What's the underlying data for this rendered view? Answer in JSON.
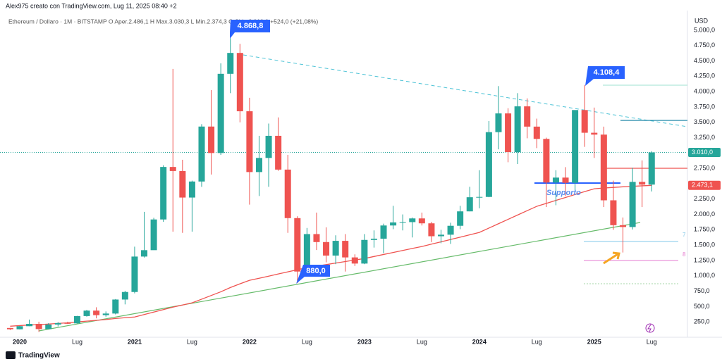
{
  "header": {
    "credit": "Alex975 creato con TradingView.com, Lug 11, 2025 08:40 +2",
    "legend": "Ethereum / Dollaro · 1M · BITSTAMP  O Aper.2.486,1  H Max.3.030,3  L Min.2.374,3  C Chiu.3.010,0  +524,0 (+21,08%)"
  },
  "footer": "TradingView",
  "chart_data": {
    "type": "candlestick",
    "y_axis_label": "USD",
    "categories": [
      null,
      "2020",
      null,
      null,
      null,
      null,
      null,
      "Lug",
      null,
      null,
      null,
      null,
      null,
      "2021",
      null,
      null,
      null,
      null,
      null,
      "Lug",
      null,
      null,
      null,
      null,
      null,
      "2022",
      null,
      null,
      null,
      null,
      null,
      "Lug",
      null,
      null,
      null,
      null,
      null,
      "2023",
      null,
      null,
      null,
      null,
      null,
      "Lug",
      null,
      null,
      null,
      null,
      null,
      "2024",
      null,
      null,
      null,
      null,
      null,
      "Lug",
      null,
      null,
      null,
      null,
      null,
      "2025",
      null,
      null,
      null,
      null,
      null,
      "Lug"
    ],
    "open": [
      151,
      130,
      180,
      218,
      133,
      207,
      231,
      226,
      345,
      434,
      360,
      386,
      614,
      737,
      1314,
      1418,
      1918,
      2773,
      2707,
      2275,
      2536,
      3431,
      3000,
      4290,
      4630,
      3680,
      2690,
      2920,
      3280,
      2730,
      1940,
      1070,
      1680,
      1550,
      1330,
      1570,
      1300,
      1200,
      1585,
      1605,
      1820,
      1870,
      1875,
      1935,
      1855,
      1645,
      1670,
      1815,
      2050,
      2280,
      2285,
      3340,
      3645,
      3015,
      3760,
      3430,
      3230,
      2520,
      2600,
      2515,
      3700,
      3330,
      3300,
      2230,
      1825,
      1795,
      2530,
      2486.1
    ],
    "high": [
      152,
      184,
      288,
      253,
      228,
      246,
      253,
      348,
      446,
      488,
      420,
      622,
      756,
      1475,
      2042,
      1945,
      2800,
      4370,
      2890,
      2550,
      3470,
      4025,
      4460,
      4868.8,
      4778,
      3900,
      3280,
      3480,
      3580,
      2970,
      1970,
      1780,
      2030,
      1790,
      1660,
      1680,
      1350,
      1680,
      1740,
      1850,
      2140,
      2000,
      1950,
      2030,
      1880,
      1750,
      1865,
      2140,
      2450,
      2720,
      3520,
      4090,
      3730,
      3975,
      3890,
      3560,
      3250,
      2720,
      2770,
      3690,
      4108.4,
      3740,
      3430,
      2550,
      1950,
      2760,
      2880,
      3030.3
    ],
    "low": [
      117,
      127,
      180,
      86,
      131,
      176,
      215,
      224,
      335,
      308,
      335,
      372,
      535,
      715,
      1298,
      1435,
      1880,
      1720,
      1700,
      1720,
      2450,
      2650,
      2970,
      3975,
      3500,
      2160,
      2300,
      2450,
      2710,
      1700,
      880,
      1000,
      1420,
      1220,
      1190,
      1070,
      1160,
      1190,
      1460,
      1370,
      1760,
      1740,
      1625,
      1820,
      1550,
      1530,
      1520,
      1760,
      2050,
      2100,
      2280,
      3060,
      2850,
      2820,
      3240,
      3080,
      2120,
      2150,
      2300,
      2360,
      3100,
      2920,
      2120,
      1750,
      1380,
      1755,
      2120,
      2374.3
    ],
    "close": [
      130,
      180,
      218,
      133,
      207,
      231,
      226,
      345,
      434,
      360,
      386,
      614,
      737,
      1314,
      1418,
      1918,
      2773,
      2707,
      2275,
      2536,
      3431,
      3000,
      4290,
      4630,
      3680,
      2690,
      2920,
      3280,
      2730,
      1940,
      1070,
      1680,
      1550,
      1330,
      1570,
      1300,
      1200,
      1585,
      1605,
      1820,
      1870,
      1875,
      1935,
      1855,
      1645,
      1670,
      1815,
      2050,
      2280,
      2285,
      3340,
      3645,
      3015,
      3760,
      3430,
      3230,
      2520,
      2600,
      2515,
      3700,
      3330,
      3300,
      2230,
      1825,
      1795,
      2530,
      2486.1,
      3010
    ],
    "up_color": "#26a69a",
    "down_color": "#ef5350",
    "ma": {
      "color": "#ef5350",
      "values": [
        180,
        190,
        200,
        205,
        215,
        225,
        235,
        250,
        262,
        275,
        288,
        305,
        318,
        330,
        370,
        410,
        450,
        490,
        525,
        560,
        620,
        680,
        740,
        810,
        870,
        927,
        960,
        995,
        1030,
        1065,
        1100,
        1133,
        1158,
        1183,
        1208,
        1233,
        1258,
        1282,
        1315,
        1348,
        1380,
        1413,
        1446,
        1478,
        1516,
        1554,
        1592,
        1630,
        1668,
        1707,
        1778,
        1849,
        1920,
        1991,
        2062,
        2132,
        2180,
        2228,
        2276,
        2324,
        2372,
        2418,
        2430,
        2440,
        2450,
        2458,
        2466,
        2473.1
      ]
    },
    "last_price": {
      "value": 3010,
      "label": "3.010,0"
    },
    "ma_last": {
      "value": 2473.1,
      "label": "2.473,1"
    },
    "ylim": [
      0,
      5320
    ],
    "yticks": [
      {
        "value": 250,
        "label": "250,0"
      },
      {
        "value": 500,
        "label": "500,0"
      },
      {
        "value": 750,
        "label": "750,0"
      },
      {
        "value": 1000,
        "label": "1.000,0"
      },
      {
        "value": 1250,
        "label": "1.250,0"
      },
      {
        "value": 1500,
        "label": "1.500,0"
      },
      {
        "value": 1750,
        "label": "1.750,0"
      },
      {
        "value": 2000,
        "label": "2.000,0"
      },
      {
        "value": 2250,
        "label": "2.250,0"
      },
      {
        "value": 2500,
        "label": "2.500,0"
      },
      {
        "value": 2750,
        "label": "2.750,0"
      },
      {
        "value": 3000,
        "label": "3.000,0"
      },
      {
        "value": 3250,
        "label": "3.250,0"
      },
      {
        "value": 3500,
        "label": "3.500,0"
      },
      {
        "value": 3750,
        "label": "3.750,0"
      },
      {
        "value": 4000,
        "label": "4.000,0"
      },
      {
        "value": 4250,
        "label": "4.250,0"
      },
      {
        "value": 4500,
        "label": "4.500,0"
      },
      {
        "value": 4750,
        "label": "4.750,0"
      },
      {
        "value": 5000,
        "label": "5.000,0"
      }
    ],
    "grid": false,
    "annotations": [
      "4.868,8",
      "4.108,4",
      "880,0",
      "Supporto",
      "7",
      "8"
    ]
  }
}
